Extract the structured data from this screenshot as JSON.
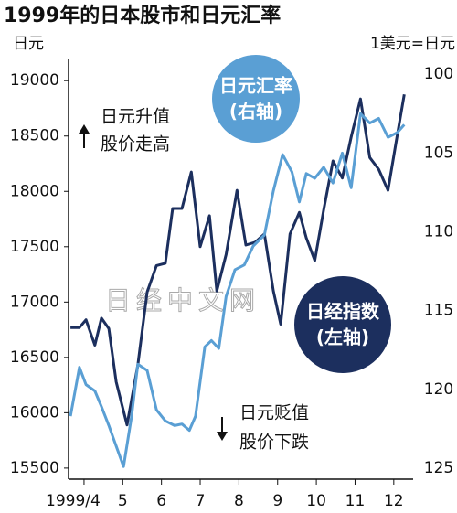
{
  "chart_data": {
    "type": "line",
    "title": "1999年的日本股市和日元汇率",
    "y_label": "日元",
    "y2_label": "1美元=日元",
    "annotations": [
      {
        "direction": "up",
        "lines": [
          "日元升值",
          "股价走高"
        ]
      },
      {
        "direction": "down",
        "lines": [
          "日元贬值",
          "股价下跌"
        ]
      }
    ],
    "watermark": "日经中文网",
    "xlim": [
      3.6,
      12.5
    ],
    "xticks": [
      {
        "value": 4,
        "label": "1999/4"
      },
      5,
      6,
      7,
      8,
      9,
      10,
      11,
      12
    ],
    "ylim": [
      15400,
      19200
    ],
    "yticks": [
      15500,
      16000,
      16500,
      17000,
      17500,
      18000,
      18500,
      19000
    ],
    "y2lim": [
      125.7,
      99
    ],
    "y2ticks": [
      100,
      105,
      110,
      115,
      120,
      125
    ],
    "series": [
      {
        "name": "日经指数",
        "axis_label": "(左轴)",
        "color": "#1c2f5e",
        "x": [
          3.65,
          3.88,
          4.05,
          4.28,
          4.45,
          4.64,
          4.83,
          5.11,
          5.39,
          5.63,
          5.87,
          6.1,
          6.29,
          6.53,
          6.77,
          7.0,
          7.24,
          7.43,
          7.67,
          7.95,
          8.18,
          8.42,
          8.66,
          8.89,
          9.08,
          9.32,
          9.56,
          9.74,
          9.96,
          10.19,
          10.43,
          10.67,
          10.9,
          11.14,
          11.38,
          11.61,
          11.85,
          12.09,
          12.27
        ],
        "values": [
          16770,
          16770,
          16840,
          16610,
          16855,
          16760,
          16280,
          15890,
          16430,
          17090,
          17330,
          17350,
          17845,
          17845,
          18175,
          17500,
          17780,
          17100,
          17430,
          18010,
          17515,
          17540,
          17615,
          17100,
          16800,
          17615,
          17810,
          17580,
          17375,
          17830,
          18275,
          18120,
          18490,
          18835,
          18305,
          18200,
          18010,
          18505,
          18875
        ]
      },
      {
        "name": "日元汇率",
        "axis_label": "(右轴)",
        "color": "#5a9fd4",
        "axis": "y2",
        "x": [
          3.65,
          3.88,
          4.05,
          4.28,
          4.45,
          4.64,
          4.83,
          5.02,
          5.23,
          5.39,
          5.63,
          5.87,
          6.1,
          6.34,
          6.53,
          6.72,
          6.88,
          7.12,
          7.29,
          7.48,
          7.67,
          7.9,
          8.14,
          8.37,
          8.66,
          8.89,
          9.13,
          9.37,
          9.56,
          9.74,
          9.96,
          10.19,
          10.43,
          10.67,
          10.9,
          11.14,
          11.38,
          11.61,
          11.85,
          12.09,
          12.27
        ],
        "values": [
          121.7,
          118.6,
          119.7,
          120.1,
          121.1,
          122.3,
          123.6,
          124.9,
          121.7,
          118.4,
          118.8,
          121.3,
          122.0,
          122.3,
          122.2,
          122.6,
          121.7,
          117.3,
          116.9,
          117.4,
          114.1,
          112.4,
          112.1,
          110.9,
          110.2,
          107.4,
          105.1,
          106.2,
          108.1,
          106.3,
          106.6,
          105.9,
          106.9,
          105.0,
          107.2,
          102.5,
          103.1,
          102.8,
          104.0,
          103.7,
          103.2
        ]
      }
    ]
  }
}
